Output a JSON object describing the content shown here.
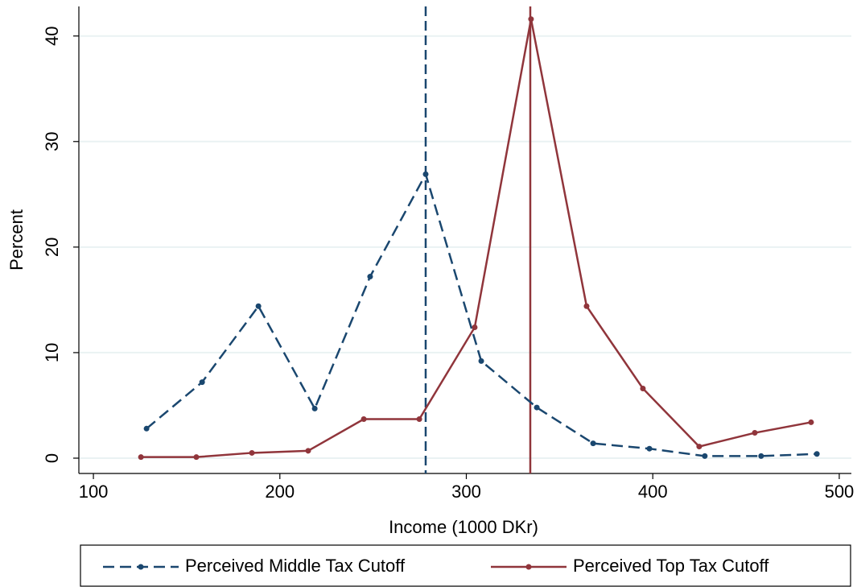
{
  "chart_data": {
    "type": "line",
    "xlabel": "Income (1000 DKr)",
    "ylabel": "Percent",
    "xlim": [
      92.2,
      506.5
    ],
    "ylim": [
      -1.45,
      42.8
    ],
    "xticks": [
      100,
      200,
      300,
      400,
      500
    ],
    "yticks": [
      0,
      10,
      20,
      30,
      40
    ],
    "grid": true,
    "legend": "bottom",
    "series": [
      {
        "name": "Perceived Middle Tax Cutoff",
        "color": "#1a476f",
        "dash": true,
        "x": [
          128.5,
          158.3,
          188.5,
          218.7,
          248.4,
          278.2,
          308,
          337.8,
          368,
          398.2,
          427.9,
          458.1,
          488
        ],
        "values": [
          2.8,
          7.2,
          14.4,
          4.7,
          17.2,
          26.9,
          9.2,
          4.8,
          1.4,
          0.9,
          0.2,
          0.2,
          0.4
        ]
      },
      {
        "name": "Perceived Top Tax Cutoff",
        "color": "#90353b",
        "dash": false,
        "x": [
          125.5,
          155.2,
          185,
          215.2,
          245,
          274.8,
          304.5,
          334.7,
          364.5,
          394.7,
          424.9,
          454.7,
          484.9
        ],
        "values": [
          0.1,
          0.1,
          0.5,
          0.7,
          3.7,
          3.7,
          12.4,
          41.6,
          14.4,
          6.6,
          1.1,
          2.4,
          3.4
        ]
      }
    ],
    "vlines": [
      {
        "x": 278.2,
        "color": "#1a476f",
        "dash": true
      },
      {
        "x": 334.3,
        "color": "#90353b",
        "dash": false
      }
    ]
  }
}
